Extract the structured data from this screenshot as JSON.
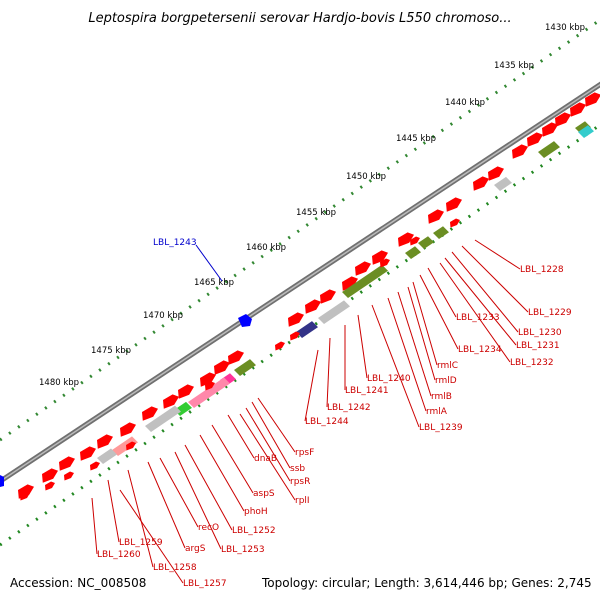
{
  "title": "Leptospira borgpetersenii serovar Hardjo-bovis L550 chromoso...",
  "footer": {
    "accession": "Accession: NC_008508",
    "summary": "Topology: circular; Length: 3,614,446 bp; Genes: 2,745"
  },
  "kbp_ticks": [
    "1430 kbp",
    "1435 kbp",
    "1440 kbp",
    "1445 kbp",
    "1450 kbp",
    "1455 kbp",
    "1460 kbp",
    "1465 kbp",
    "1470 kbp",
    "1475 kbp",
    "1480 kbp"
  ],
  "gene_labels_right": [
    "LBL_1228",
    "LBL_1229",
    "LBL_1230",
    "LBL_1231",
    "LBL_1232",
    "LBL_1233",
    "LBL_1234",
    "rmlC",
    "rmlD",
    "rmlB",
    "rmlA",
    "LBL_1239",
    "LBL_1240",
    "LBL_1241",
    "LBL_1242",
    "LBL_1244"
  ],
  "gene_labels_lower": [
    "rpsF",
    "ssb",
    "rpsR",
    "rplI",
    "dnaB",
    "aspS",
    "phoH",
    "LBL_1252",
    "LBL_1253",
    "recO",
    "argS",
    "LBL_1258",
    "LBL_1259",
    "LBL_1257",
    "LBL_1260"
  ],
  "blue_label": "LBL_1243",
  "colors": {
    "cds": "#ff0000",
    "label_red": "#cc0000",
    "label_blue": "#0000cc",
    "backbone": "#808080",
    "tick_dots": "#338833",
    "olive": "#6b8e23",
    "navy": "#333388",
    "pink": "#ff3399",
    "green": "#33cc33",
    "cyan": "#33cccc",
    "gray_rrna": "#c0c0c0"
  }
}
